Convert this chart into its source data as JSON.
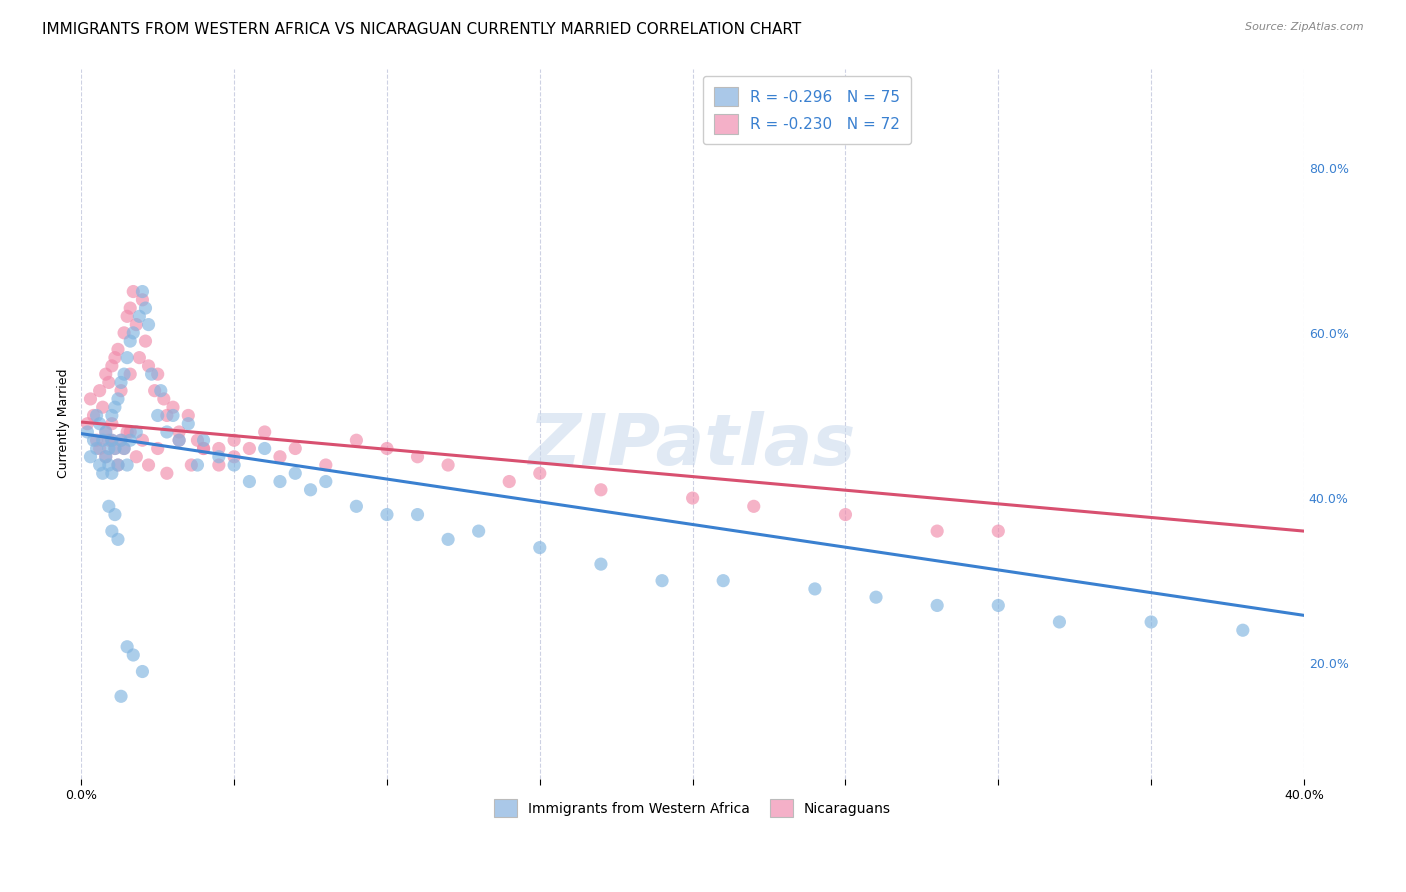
{
  "title": "IMMIGRANTS FROM WESTERN AFRICA VS NICARAGUAN CURRENTLY MARRIED CORRELATION CHART",
  "source": "Source: ZipAtlas.com",
  "ylabel": "Currently Married",
  "right_yticks": [
    "20.0%",
    "40.0%",
    "60.0%",
    "80.0%"
  ],
  "right_ytick_vals": [
    0.2,
    0.4,
    0.6,
    0.8
  ],
  "xlim": [
    0.0,
    0.4
  ],
  "ylim": [
    0.06,
    0.92
  ],
  "watermark": "ZIPatlas",
  "legend_entries": [
    {
      "label": "R = -0.296   N = 75",
      "color": "#aac8e8"
    },
    {
      "label": "R = -0.230   N = 72",
      "color": "#f4b0c8"
    }
  ],
  "legend_bottom": [
    {
      "label": "Immigrants from Western Africa",
      "color": "#aac8e8"
    },
    {
      "label": "Nicaraguans",
      "color": "#f4b0c8"
    }
  ],
  "blue_scatter_x": [
    0.002,
    0.003,
    0.004,
    0.005,
    0.005,
    0.006,
    0.006,
    0.007,
    0.007,
    0.008,
    0.008,
    0.009,
    0.009,
    0.01,
    0.01,
    0.01,
    0.011,
    0.011,
    0.012,
    0.012,
    0.013,
    0.013,
    0.014,
    0.014,
    0.015,
    0.015,
    0.016,
    0.016,
    0.017,
    0.018,
    0.019,
    0.02,
    0.021,
    0.022,
    0.023,
    0.025,
    0.026,
    0.028,
    0.03,
    0.032,
    0.035,
    0.038,
    0.04,
    0.045,
    0.05,
    0.055,
    0.06,
    0.065,
    0.07,
    0.075,
    0.08,
    0.09,
    0.1,
    0.11,
    0.12,
    0.13,
    0.15,
    0.17,
    0.19,
    0.21,
    0.24,
    0.26,
    0.28,
    0.3,
    0.32,
    0.35,
    0.38,
    0.009,
    0.01,
    0.011,
    0.012,
    0.013,
    0.015,
    0.017,
    0.02
  ],
  "blue_scatter_y": [
    0.48,
    0.45,
    0.47,
    0.46,
    0.5,
    0.44,
    0.49,
    0.43,
    0.47,
    0.45,
    0.48,
    0.44,
    0.46,
    0.5,
    0.47,
    0.43,
    0.51,
    0.46,
    0.52,
    0.44,
    0.54,
    0.47,
    0.55,
    0.46,
    0.57,
    0.44,
    0.59,
    0.47,
    0.6,
    0.48,
    0.62,
    0.65,
    0.63,
    0.61,
    0.55,
    0.5,
    0.53,
    0.48,
    0.5,
    0.47,
    0.49,
    0.44,
    0.47,
    0.45,
    0.44,
    0.42,
    0.46,
    0.42,
    0.43,
    0.41,
    0.42,
    0.39,
    0.38,
    0.38,
    0.35,
    0.36,
    0.34,
    0.32,
    0.3,
    0.3,
    0.29,
    0.28,
    0.27,
    0.27,
    0.25,
    0.25,
    0.24,
    0.39,
    0.36,
    0.38,
    0.35,
    0.16,
    0.22,
    0.21,
    0.19
  ],
  "pink_scatter_x": [
    0.002,
    0.003,
    0.004,
    0.005,
    0.006,
    0.006,
    0.007,
    0.008,
    0.008,
    0.009,
    0.009,
    0.01,
    0.01,
    0.011,
    0.011,
    0.012,
    0.013,
    0.013,
    0.014,
    0.015,
    0.015,
    0.016,
    0.016,
    0.017,
    0.018,
    0.019,
    0.02,
    0.021,
    0.022,
    0.024,
    0.025,
    0.027,
    0.028,
    0.03,
    0.032,
    0.035,
    0.038,
    0.04,
    0.045,
    0.05,
    0.055,
    0.06,
    0.065,
    0.07,
    0.08,
    0.09,
    0.1,
    0.11,
    0.12,
    0.14,
    0.15,
    0.17,
    0.2,
    0.22,
    0.25,
    0.28,
    0.3,
    0.008,
    0.01,
    0.012,
    0.014,
    0.016,
    0.018,
    0.02,
    0.022,
    0.025,
    0.028,
    0.032,
    0.036,
    0.04,
    0.045,
    0.05
  ],
  "pink_scatter_y": [
    0.49,
    0.52,
    0.5,
    0.47,
    0.53,
    0.46,
    0.51,
    0.55,
    0.48,
    0.54,
    0.47,
    0.56,
    0.49,
    0.57,
    0.46,
    0.58,
    0.53,
    0.47,
    0.6,
    0.62,
    0.48,
    0.63,
    0.55,
    0.65,
    0.61,
    0.57,
    0.64,
    0.59,
    0.56,
    0.53,
    0.55,
    0.52,
    0.5,
    0.51,
    0.48,
    0.5,
    0.47,
    0.46,
    0.46,
    0.47,
    0.46,
    0.48,
    0.45,
    0.46,
    0.44,
    0.47,
    0.46,
    0.45,
    0.44,
    0.42,
    0.43,
    0.41,
    0.4,
    0.39,
    0.38,
    0.36,
    0.36,
    0.45,
    0.47,
    0.44,
    0.46,
    0.48,
    0.45,
    0.47,
    0.44,
    0.46,
    0.43,
    0.47,
    0.44,
    0.46,
    0.44,
    0.45
  ],
  "blue_line_x": [
    0.0,
    0.4
  ],
  "blue_line_y": [
    0.478,
    0.258
  ],
  "pink_line_x": [
    0.0,
    0.4
  ],
  "pink_line_y": [
    0.492,
    0.36
  ],
  "scatter_size": 90,
  "scatter_alpha": 0.65,
  "dot_color_blue": "#80b4e0",
  "dot_color_pink": "#f08aaa",
  "line_color_blue": "#3a80d0",
  "line_color_pink": "#d85070",
  "grid_color": "#c8cce0",
  "background_color": "#ffffff",
  "title_fontsize": 11,
  "axis_label_fontsize": 9,
  "tick_fontsize": 9,
  "legend_text_color": "#3a80d0"
}
